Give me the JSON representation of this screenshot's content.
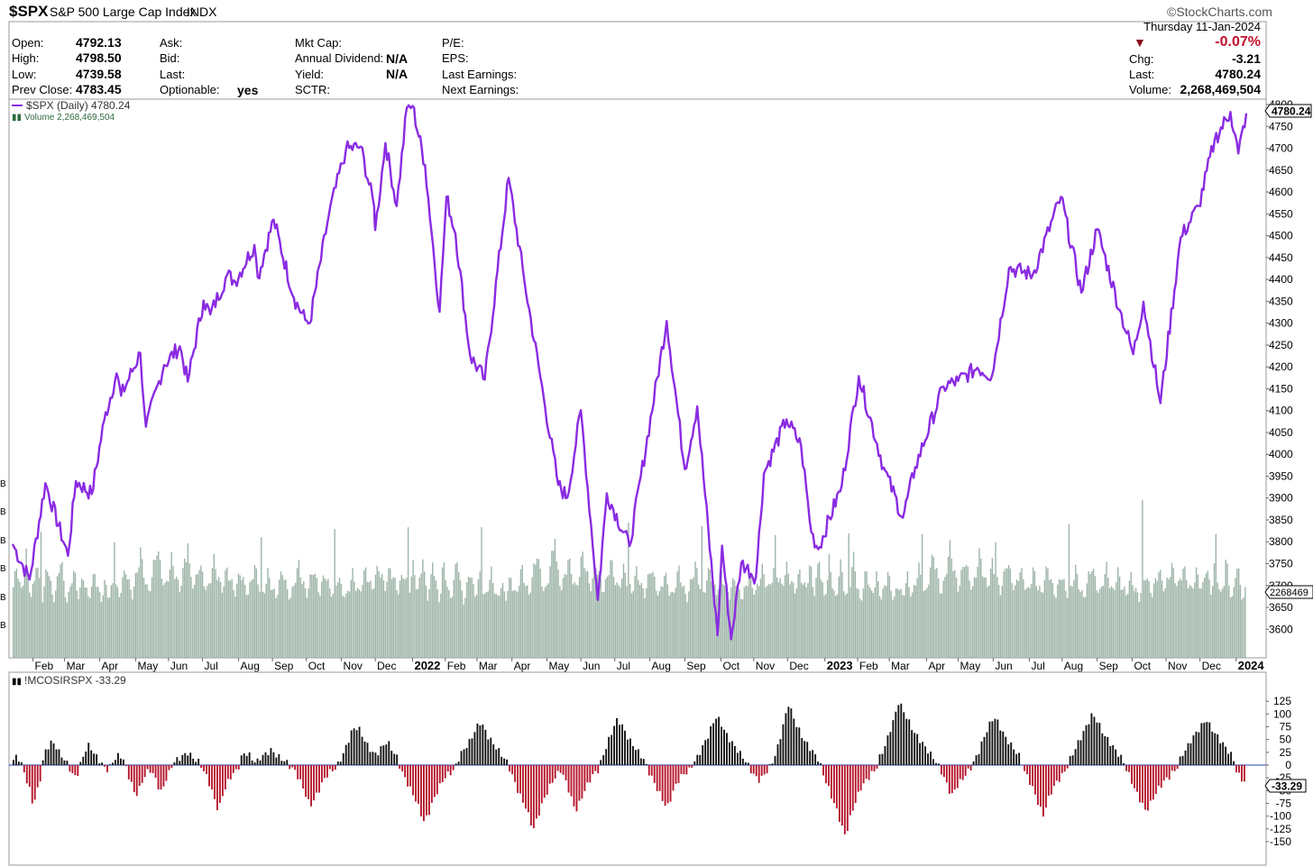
{
  "header": {
    "symbol": "$SPX",
    "name": "S&P 500 Large Cap Index",
    "exchange": "INDX",
    "source": "©StockCharts.com",
    "date": "Thursday  11-Jan-2024",
    "chg_pct": "-0.07%",
    "col1": [
      {
        "label": "Open:",
        "value": "4792.13"
      },
      {
        "label": "High:",
        "value": "4798.50"
      },
      {
        "label": "Low:",
        "value": "4739.58"
      },
      {
        "label": "Prev Close:",
        "value": "4783.45"
      }
    ],
    "col2": [
      {
        "label": "Ask:",
        "value": ""
      },
      {
        "label": "Bid:",
        "value": ""
      },
      {
        "label": "Last:",
        "value": ""
      },
      {
        "label": "Optionable:",
        "value": "yes"
      }
    ],
    "col3": [
      {
        "label": "Mkt Cap:",
        "value": ""
      },
      {
        "label": "Annual Dividend:",
        "value": "N/A"
      },
      {
        "label": "Yield:",
        "value": "N/A"
      },
      {
        "label": "SCTR:",
        "value": ""
      }
    ],
    "col4": [
      {
        "label": "P/E:",
        "value": ""
      },
      {
        "label": "EPS:",
        "value": ""
      },
      {
        "label": "Last Earnings:",
        "value": ""
      },
      {
        "label": "Next Earnings:",
        "value": ""
      }
    ],
    "col5": [
      {
        "label": "Chg:",
        "value": "-3.21"
      },
      {
        "label": "Last:",
        "value": "4780.24"
      },
      {
        "label": "Volume:",
        "value": "2,268,469,504"
      }
    ]
  },
  "colors": {
    "price": "#8a2be2",
    "volume": "#9eb5a8",
    "osc_pos": "#111111",
    "osc_neg": "#b5152b",
    "zero_line": "#1e3fb0",
    "down_arrow": "#8b0a1e"
  },
  "chart_data": [
    {
      "type": "line",
      "legend": "$SPX (Daily) 4780.24",
      "volume_legend": "Volume 2,268,469,504",
      "last_price_label": "4780.24",
      "volume_tag": "2268469",
      "left_axis_labels": [
        "B",
        "B",
        "B",
        "B",
        "B",
        "B"
      ],
      "x_ticks": [
        "Feb",
        "Mar",
        "Apr",
        "May",
        "Jun",
        "Jul",
        "Aug",
        "Sep",
        "Oct",
        "Nov",
        "Dec",
        "2022",
        "Feb",
        "Mar",
        "Apr",
        "May",
        "Jun",
        "Jul",
        "Aug",
        "Sep",
        "Oct",
        "Nov",
        "Dec",
        "2023",
        "Feb",
        "Mar",
        "Apr",
        "May",
        "Jun",
        "Jul",
        "Aug",
        "Sep",
        "Oct",
        "Nov",
        "Dec",
        "2024"
      ],
      "y_ticks": [
        4800,
        4750,
        4700,
        4650,
        4600,
        4550,
        4500,
        4450,
        4400,
        4350,
        4300,
        4250,
        4200,
        4150,
        4100,
        4050,
        4000,
        3950,
        3900,
        3850,
        3800,
        3750,
        3700,
        3650,
        3600
      ],
      "ylim": [
        3580,
        4800
      ],
      "series": [
        {
          "name": "$SPX",
          "points": [
            [
              "2021-01-14",
              3795
            ],
            [
              "2021-01-29",
              3714
            ],
            [
              "2021-02-12",
              3934
            ],
            [
              "2021-03-04",
              3768
            ],
            [
              "2021-03-11",
              3939
            ],
            [
              "2021-03-25",
              3909
            ],
            [
              "2021-04-05",
              4077
            ],
            [
              "2021-04-16",
              4185
            ],
            [
              "2021-04-20",
              4134
            ],
            [
              "2021-05-07",
              4232
            ],
            [
              "2021-05-12",
              4063
            ],
            [
              "2021-05-28",
              4204
            ],
            [
              "2021-06-11",
              4247
            ],
            [
              "2021-06-18",
              4166
            ],
            [
              "2021-07-02",
              4352
            ],
            [
              "2021-07-08",
              4320
            ],
            [
              "2021-07-23",
              4411
            ],
            [
              "2021-07-30",
              4395
            ],
            [
              "2021-08-16",
              4479
            ],
            [
              "2021-08-19",
              4405
            ],
            [
              "2021-09-02",
              4537
            ],
            [
              "2021-09-20",
              4358
            ],
            [
              "2021-09-30",
              4307
            ],
            [
              "2021-10-04",
              4300
            ],
            [
              "2021-10-21",
              4549
            ],
            [
              "2021-11-05",
              4697
            ],
            [
              "2021-11-18",
              4704
            ],
            [
              "2021-11-30",
              4567
            ],
            [
              "2021-12-01",
              4513
            ],
            [
              "2021-12-10",
              4712
            ],
            [
              "2021-12-20",
              4568
            ],
            [
              "2021-12-29",
              4793
            ],
            [
              "2022-01-03",
              4797
            ],
            [
              "2022-01-14",
              4662
            ],
            [
              "2022-01-27",
              4326
            ],
            [
              "2022-02-02",
              4589
            ],
            [
              "2022-02-10",
              4504
            ],
            [
              "2022-02-23",
              4225
            ],
            [
              "2022-03-08",
              4171
            ],
            [
              "2022-03-29",
              4632
            ],
            [
              "2022-04-12",
              4397
            ],
            [
              "2022-04-29",
              4132
            ],
            [
              "2022-05-12",
              3930
            ],
            [
              "2022-05-20",
              3901
            ],
            [
              "2022-06-01",
              4101
            ],
            [
              "2022-06-16",
              3667
            ],
            [
              "2022-06-24",
              3911
            ],
            [
              "2022-07-14",
              3790
            ],
            [
              "2022-08-16",
              4305
            ],
            [
              "2022-09-01",
              3966
            ],
            [
              "2022-09-12",
              4110
            ],
            [
              "2022-09-30",
              3586
            ],
            [
              "2022-10-04",
              3791
            ],
            [
              "2022-10-12",
              3577
            ],
            [
              "2022-10-21",
              3752
            ],
            [
              "2022-11-03",
              3720
            ],
            [
              "2022-11-10",
              3956
            ],
            [
              "2022-11-30",
              4080
            ],
            [
              "2022-12-13",
              4019
            ],
            [
              "2022-12-22",
              3822
            ],
            [
              "2022-12-28",
              3783
            ],
            [
              "2023-01-18",
              3929
            ],
            [
              "2023-02-02",
              4179
            ],
            [
              "2023-02-24",
              3970
            ],
            [
              "2023-03-13",
              3855
            ],
            [
              "2023-03-24",
              3971
            ],
            [
              "2023-04-18",
              4155
            ],
            [
              "2023-05-01",
              4168
            ],
            [
              "2023-05-18",
              4198
            ],
            [
              "2023-05-31",
              4180
            ],
            [
              "2023-06-15",
              4426
            ],
            [
              "2023-07-06",
              4411
            ],
            [
              "2023-07-31",
              4589
            ],
            [
              "2023-08-18",
              4370
            ],
            [
              "2023-09-01",
              4515
            ],
            [
              "2023-09-21",
              4330
            ],
            [
              "2023-10-03",
              4229
            ],
            [
              "2023-10-12",
              4349
            ],
            [
              "2023-10-27",
              4117
            ],
            [
              "2023-11-14",
              4496
            ],
            [
              "2023-11-30",
              4568
            ],
            [
              "2023-12-14",
              4719
            ],
            [
              "2023-12-28",
              4783
            ],
            [
              "2024-01-04",
              4688
            ],
            [
              "2024-01-11",
              4780
            ]
          ]
        },
        {
          "name": "Volume",
          "scale_values": [
            "low",
            "high"
          ],
          "values": [
            0.48,
            0.55,
            0.62,
            0.58,
            0.5,
            0.45,
            0.52,
            0.61,
            0.7,
            0.55,
            0.48,
            0.42,
            0.47,
            0.53,
            0.66,
            0.6,
            0.51,
            0.44,
            0.4,
            0.46,
            0.58,
            0.63,
            0.57,
            0.49,
            0.43,
            0.41,
            0.45,
            0.52,
            0.6,
            0.68,
            0.62,
            0.5,
            0.44,
            0.39,
            0.42,
            0.48,
            0.55,
            0.59,
            0.54,
            0.47,
            0.43,
            0.46,
            0.51,
            0.56,
            0.5,
            0.45,
            0.41,
            0.44,
            0.49,
            0.53,
            0.58,
            0.52,
            0.47,
            0.42,
            0.4,
            0.45,
            0.5,
            0.48,
            0.44,
            0.42,
            0.46,
            0.51,
            0.55,
            0.49,
            0.45,
            0.43,
            0.47,
            0.52,
            0.57,
            0.61,
            0.55,
            0.5,
            0.46,
            0.43,
            0.48,
            0.54,
            0.6,
            0.66,
            0.72,
            0.64,
            0.58,
            0.52,
            0.47,
            0.45,
            0.49,
            0.55,
            0.62,
            0.68,
            0.75,
            0.7,
            0.63,
            0.57,
            0.52,
            0.48,
            0.51,
            0.56,
            0.61,
            0.67,
            0.63,
            0.58,
            0.54,
            0.5,
            0.47,
            0.52,
            0.58,
            0.65,
            0.7,
            0.66,
            0.6,
            0.55,
            0.51,
            0.49,
            0.53,
            0.59,
            0.64,
            0.6,
            0.56,
            0.52,
            0.48,
            0.46,
            0.5,
            0.55,
            0.61,
            0.66,
            0.62,
            0.57,
            0.53,
            0.49,
            0.47,
            0.51,
            0.56,
            0.6,
            0.57,
            0.53,
            0.5,
            0.47,
            0.45,
            0.49,
            0.54,
            0.59,
            0.56,
            0.52,
            0.48,
            0.46,
            0.44,
            0.48,
            0.53,
            0.58,
            0.62,
            0.57,
            0.52,
            0.48,
            0.45,
            0.43,
            0.47,
            0.52,
            0.57,
            0.54,
            0.5,
            0.46,
            0.44,
            0.42,
            0.46,
            0.51,
            0.56,
            0.6,
            0.55,
            0.5,
            0.46,
            0.43,
            0.41,
            0.45,
            0.5,
            0.55,
            0.59,
            0.63,
            0.58,
            0.53,
            0.49,
            0.46,
            0.44,
            0.48,
            0.53,
            0.57,
            0.61,
            0.56,
            0.51,
            0.47,
            0.45,
            0.49,
            0.54,
            0.58,
            0.54,
            0.5,
            0.47,
            0.45,
            0.43,
            0.47,
            0.51,
            0.55,
            0.52,
            0.48,
            0.45,
            0.43,
            0.41,
            0.45,
            0.49,
            0.53,
            0.57,
            0.53,
            0.49,
            0.46,
            0.44,
            0.48,
            0.52,
            0.56,
            0.6,
            0.56,
            0.52,
            0.49,
            0.47,
            0.51,
            0.55,
            0.59,
            0.62,
            0.58,
            0.54,
            0.51,
            0.49,
            0.53,
            0.57,
            0.61,
            0.58,
            0.54,
            0.51,
            0.48,
            0.46,
            0.5,
            0.54,
            0.58,
            0.55,
            0.51,
            0.48
          ]
        },
        {
          "name": "Volume spikes",
          "values": [
            0.9,
            0.85,
            0.8,
            0.78,
            0.82,
            0.88,
            0.95,
            0.87,
            0.92,
            0.84,
            0.79,
            0.86,
            0.91,
            0.83,
            0.89,
            1.0,
            0.81
          ]
        }
      ]
    },
    {
      "type": "bar",
      "legend": "!MCOSIRSPX -33.29",
      "last_value_label": "-33.29",
      "y_ticks": [
        125,
        100,
        75,
        50,
        25,
        0,
        -25,
        -50,
        -75,
        -100,
        -125,
        -150
      ],
      "ylim": [
        -155,
        135
      ],
      "values": [
        10,
        18,
        5,
        -20,
        -40,
        -75,
        -60,
        -30,
        20,
        35,
        45,
        40,
        25,
        15,
        5,
        -10,
        -25,
        -15,
        10,
        30,
        40,
        25,
        15,
        5,
        -5,
        -10,
        5,
        15,
        20,
        10,
        -15,
        -35,
        -60,
        -50,
        -30,
        -15,
        -10,
        -20,
        -40,
        -55,
        -30,
        -15,
        5,
        10,
        15,
        20,
        25,
        15,
        10,
        5,
        -10,
        -25,
        -45,
        -70,
        -90,
        -60,
        -40,
        -25,
        -15,
        -10,
        15,
        25,
        20,
        10,
        5,
        15,
        20,
        25,
        30,
        20,
        15,
        10,
        5,
        -5,
        -10,
        -25,
        -40,
        -60,
        -80,
        -70,
        -55,
        -40,
        -25,
        -15,
        -10,
        -5,
        10,
        25,
        45,
        65,
        75,
        70,
        55,
        40,
        30,
        20,
        25,
        35,
        45,
        40,
        25,
        15,
        -10,
        -25,
        -40,
        -55,
        -70,
        -90,
        -110,
        -100,
        -80,
        -60,
        -45,
        -30,
        -20,
        -15,
        -10,
        10,
        25,
        35,
        45,
        60,
        75,
        85,
        70,
        55,
        45,
        35,
        25,
        15,
        5,
        -15,
        -35,
        -55,
        -70,
        -85,
        -110,
        -125,
        -100,
        -80,
        -60,
        -45,
        -30,
        -20,
        -10,
        -25,
        -45,
        -70,
        -90,
        -75,
        -55,
        -40,
        -25,
        -15,
        -10,
        15,
        35,
        55,
        75,
        90,
        80,
        65,
        50,
        40,
        30,
        20,
        10,
        -10,
        -25,
        -40,
        -55,
        -70,
        -85,
        -65,
        -45,
        -30,
        -20,
        -15,
        -10,
        5,
        15,
        30,
        45,
        60,
        80,
        95,
        85,
        70,
        55,
        45,
        35,
        25,
        15,
        5,
        -10,
        -20,
        -30,
        -25,
        -15,
        -5,
        10,
        30,
        60,
        90,
        120,
        100,
        80,
        65,
        50,
        40,
        30,
        20,
        10,
        -15,
        -35,
        -55,
        -75,
        -95,
        -120,
        -140,
        -110,
        -85,
        -65,
        -45,
        -35,
        -25,
        -15,
        -10,
        15,
        30,
        50,
        75,
        95,
        125,
        110,
        95,
        80,
        65,
        55,
        45,
        35,
        25,
        15,
        5,
        -10,
        -25,
        -45,
        -60,
        -45,
        -35,
        -25,
        -15,
        -5,
        10,
        25,
        45,
        65,
        80,
        95,
        85,
        70,
        55,
        45,
        35,
        25,
        15,
        -10,
        -25,
        -40,
        -60,
        -80,
        -100,
        -75,
        -55,
        -40,
        -30,
        -20,
        -10,
        10,
        25,
        40,
        55,
        70,
        85,
        100,
        90,
        75,
        60,
        50,
        40,
        30,
        20,
        10,
        -10,
        -25,
        -45,
        -60,
        -75,
        -90,
        -80,
        -65,
        -50,
        -40,
        -30,
        -25,
        -15,
        -10,
        10,
        25,
        35,
        50,
        60,
        70,
        80,
        90,
        75,
        65,
        55,
        45,
        35,
        25,
        15,
        -15,
        -25,
        -33
      ]
    }
  ]
}
